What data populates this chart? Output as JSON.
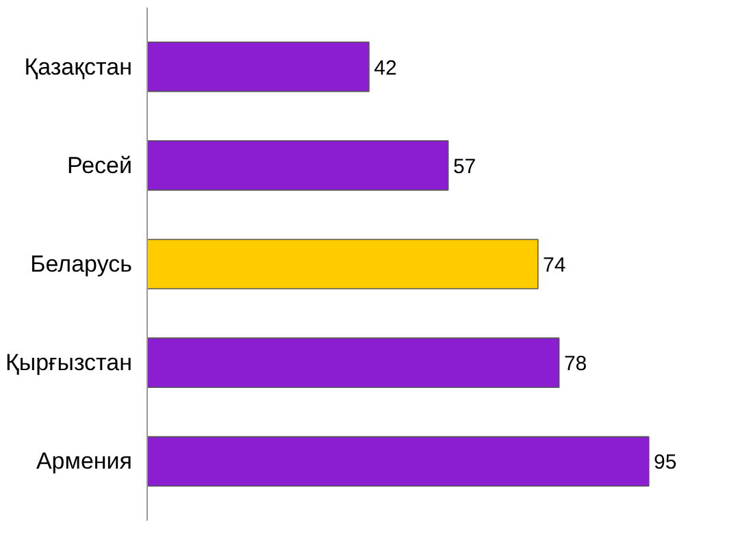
{
  "chart_data": {
    "type": "bar",
    "orientation": "horizontal",
    "categories": [
      "Қазақстан",
      "Ресей",
      "Беларусь",
      "Қырғызстан",
      "Армения"
    ],
    "values": [
      42,
      57,
      74,
      78,
      95
    ],
    "colors": [
      "#8a1ed0",
      "#8a1ed0",
      "#ffcc00",
      "#8a1ed0",
      "#8a1ed0"
    ],
    "data_labels": true
  }
}
